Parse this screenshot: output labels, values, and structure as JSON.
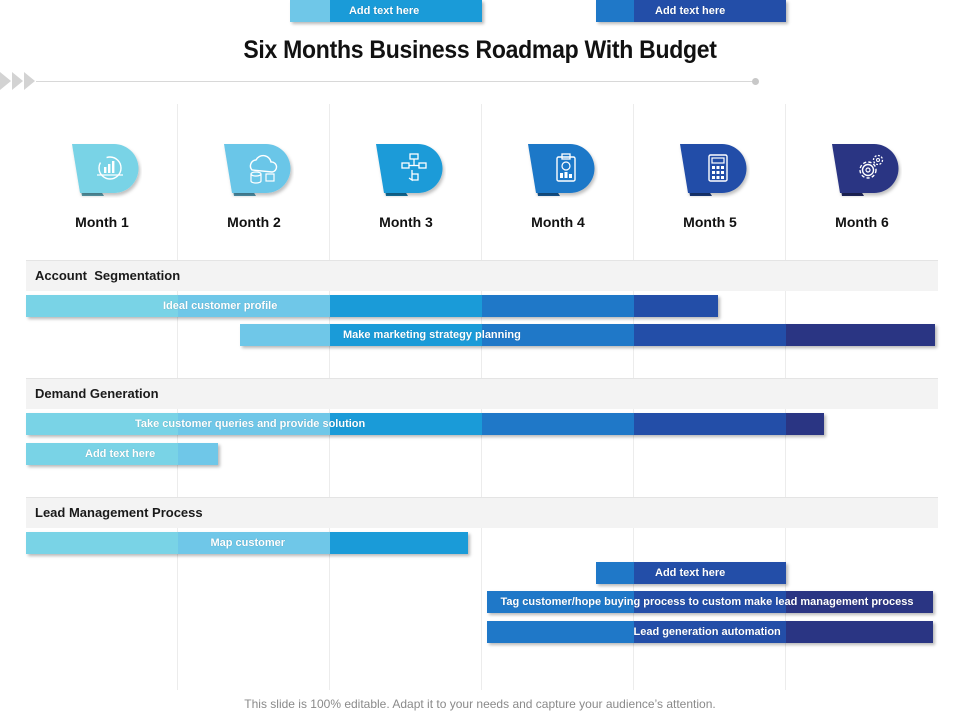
{
  "title": "Six Months Business Roadmap With Budget",
  "months": [
    {
      "label": "Month 1",
      "icon": "analytics-chart-icon",
      "color": "#79d3e6"
    },
    {
      "label": "Month 2",
      "icon": "cloud-database-icon",
      "color": "#6bc6e8"
    },
    {
      "label": "Month 3",
      "icon": "flowchart-touch-icon",
      "color": "#1a9bd8"
    },
    {
      "label": "Month 4",
      "icon": "clipboard-chart-icon",
      "color": "#1f78c8"
    },
    {
      "label": "Month 5",
      "icon": "calculator-icon",
      "color": "#234ea8"
    },
    {
      "label": "Month 6",
      "icon": "gear-icon",
      "color": "#2a3583"
    }
  ],
  "colors": {
    "m1": "#79d3e6",
    "m2": "#6fc7e8",
    "m3": "#1a9bd8",
    "m4": "#1f78c8",
    "m5": "#234ea8",
    "m6": "#2a3583"
  },
  "sections": [
    {
      "title": "Account  Segmentation",
      "tasks": [
        {
          "label": "Ideal customer profile",
          "start": 0.0,
          "end": 4.55
        },
        {
          "label": "Make marketing strategy planning",
          "start": 1.41,
          "end": 5.98
        }
      ]
    },
    {
      "title": "Demand Generation",
      "tasks": [
        {
          "label": "Take customer queries and provide solution",
          "start": 0.0,
          "end": 5.25
        },
        {
          "label": "Add text here",
          "start": 0.0,
          "end": 1.26
        },
        {
          "label": "Add text here",
          "start": 1.74,
          "end": 3.0
        },
        {
          "label": "Add text here",
          "start": 3.75,
          "end": 5.0
        }
      ]
    },
    {
      "title": "Lead Management Process",
      "tasks": [
        {
          "label": "Map customer",
          "start": 0.0,
          "end": 2.91
        },
        {
          "label": "Add text here",
          "start": 3.75,
          "end": 5.0
        },
        {
          "label": "Tag customer/hope buying process to custom make lead management process",
          "start": 3.03,
          "end": 5.97
        },
        {
          "label": "Lead generation automation",
          "start": 3.03,
          "end": 5.97
        }
      ]
    }
  ],
  "footer": "This slide is 100% editable. Adapt it to your needs and capture your audience’s attention."
}
